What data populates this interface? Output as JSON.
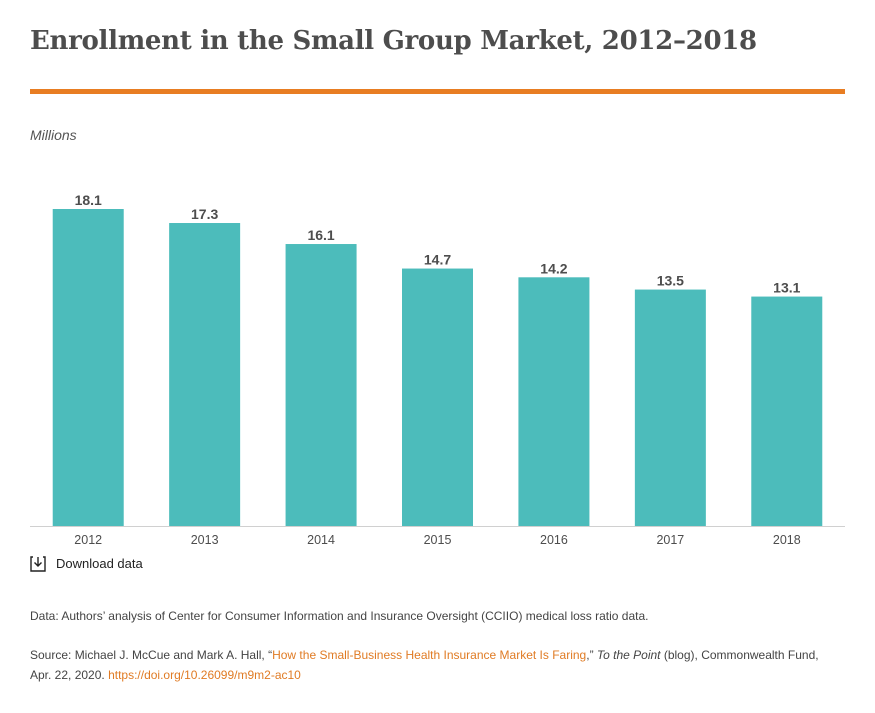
{
  "header": {
    "title": "Enrollment in the Small Group Market, 2012–2018"
  },
  "colors": {
    "accent": "#e87d22",
    "bar": "#4cbcbb",
    "link": "#e07b24",
    "axis": "#d0d0d0"
  },
  "chart_data": {
    "type": "bar",
    "title": "Enrollment in the Small Group Market, 2012–2018",
    "units_label": "Millions",
    "xlabel": "",
    "ylabel": "",
    "categories": [
      "2012",
      "2013",
      "2014",
      "2015",
      "2016",
      "2017",
      "2018"
    ],
    "values": [
      18.1,
      17.3,
      16.1,
      14.7,
      14.2,
      13.5,
      13.1
    ],
    "value_labels": [
      "18.1",
      "17.3",
      "16.1",
      "14.7",
      "14.2",
      "13.5",
      "13.1"
    ],
    "ylim": [
      0,
      18.1
    ],
    "grid": false,
    "legend": "none"
  },
  "download": {
    "label": "Download data",
    "icon": "download-icon"
  },
  "notes": {
    "data": "Data: Authors’ analysis of Center for Consumer Information and Insurance Oversight (CCIIO) medical loss ratio data.",
    "source_prefix": "Source: Michael J. McCue and Mark A. Hall, “",
    "source_link": "How the Small-Business Health Insurance Market Is Faring",
    "source_mid": ",” ",
    "source_pub": "To the Point",
    "source_rest": " (blog), Commonwealth Fund, Apr. 22, 2020. ",
    "doi": "https://doi.org/10.26099/m9m2-ac10"
  }
}
